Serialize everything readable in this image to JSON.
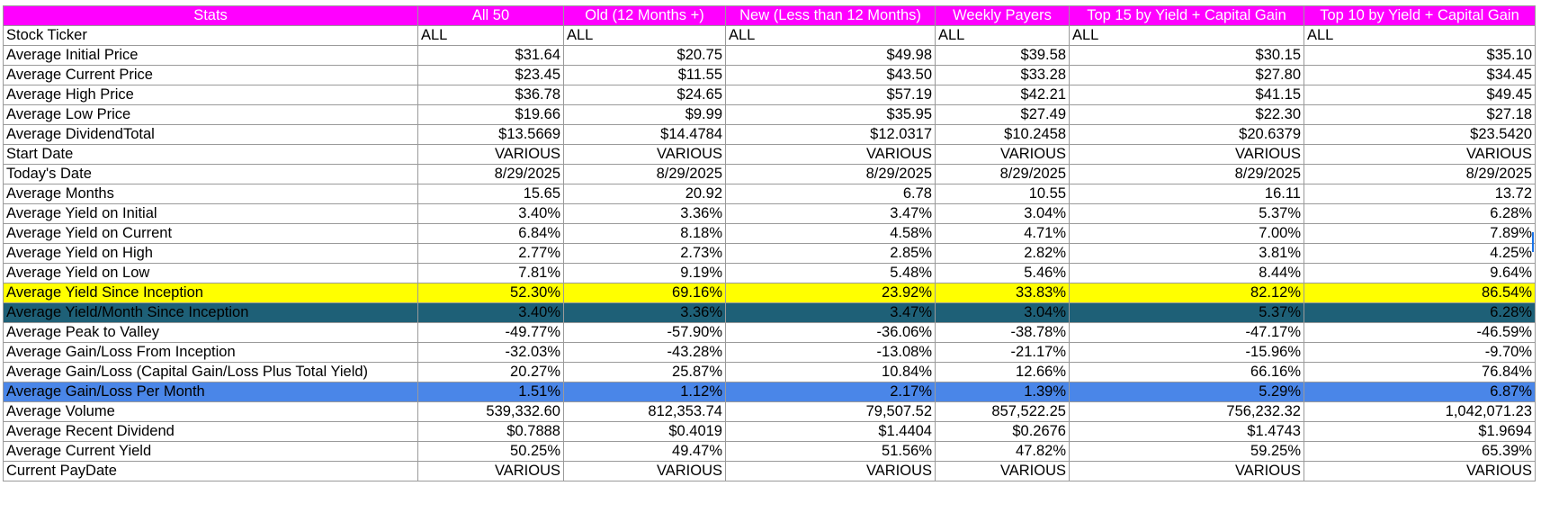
{
  "columns": [
    "Stats",
    "All 50",
    "Old (12 Months +)",
    "New (Less than 12 Months)",
    "Weekly Payers",
    "Top 15 by Yield + Capital Gain",
    "Top 10 by Yield + Capital Gain"
  ],
  "colors": {
    "header_bg": "#ff00ff",
    "header_text": "#ffffff",
    "yellow_highlight": "#ffff00",
    "teal_highlight": "#1e6077",
    "blue_highlight": "#4a86e8",
    "grid": "#9a9a9a"
  },
  "rows": [
    {
      "label": "Stock Ticker",
      "align": "left",
      "style": "",
      "values": [
        "ALL",
        "ALL",
        "ALL",
        "ALL",
        "ALL",
        "ALL"
      ]
    },
    {
      "label": "Average Initial Price",
      "align": "right",
      "style": "",
      "values": [
        "$31.64",
        "$20.75",
        "$49.98",
        "$39.58",
        "$30.15",
        "$35.10"
      ]
    },
    {
      "label": "Average Current Price",
      "align": "right",
      "style": "",
      "values": [
        "$23.45",
        "$11.55",
        "$43.50",
        "$33.28",
        "$27.80",
        "$34.45"
      ]
    },
    {
      "label": "Average High Price",
      "align": "right",
      "style": "",
      "values": [
        "$36.78",
        "$24.65",
        "$57.19",
        "$42.21",
        "$41.15",
        "$49.45"
      ]
    },
    {
      "label": "Average Low Price",
      "align": "right",
      "style": "",
      "values": [
        "$19.66",
        "$9.99",
        "$35.95",
        "$27.49",
        "$22.30",
        "$27.18"
      ]
    },
    {
      "label": "Average DividendTotal",
      "align": "right",
      "style": "",
      "values": [
        "$13.5669",
        "$14.4784",
        "$12.0317",
        "$10.2458",
        "$20.6379",
        "$23.5420"
      ]
    },
    {
      "label": "Start Date",
      "align": "right",
      "style": "",
      "values": [
        "VARIOUS",
        "VARIOUS",
        "VARIOUS",
        "VARIOUS",
        "VARIOUS",
        "VARIOUS"
      ]
    },
    {
      "label": "Today's Date",
      "align": "right",
      "style": "",
      "values": [
        "8/29/2025",
        "8/29/2025",
        "8/29/2025",
        "8/29/2025",
        "8/29/2025",
        "8/29/2025"
      ]
    },
    {
      "label": "Average Months",
      "align": "right",
      "style": "",
      "values": [
        "15.65",
        "20.92",
        "6.78",
        "10.55",
        "16.11",
        "13.72"
      ]
    },
    {
      "label": "Average Yield on Initial",
      "align": "right",
      "style": "",
      "values": [
        "3.40%",
        "3.36%",
        "3.47%",
        "3.04%",
        "5.37%",
        "6.28%"
      ]
    },
    {
      "label": "Average Yield on Current",
      "align": "right",
      "style": "",
      "values": [
        "6.84%",
        "8.18%",
        "4.58%",
        "4.71%",
        "7.00%",
        "7.89%"
      ]
    },
    {
      "label": "Average Yield on High",
      "align": "right",
      "style": "",
      "values": [
        "2.77%",
        "2.73%",
        "2.85%",
        "2.82%",
        "3.81%",
        "4.25%"
      ]
    },
    {
      "label": "Average Yield on Low",
      "align": "right",
      "style": "",
      "values": [
        "7.81%",
        "9.19%",
        "5.48%",
        "5.46%",
        "8.44%",
        "9.64%"
      ]
    },
    {
      "label": "Average Yield Since Inception",
      "align": "right",
      "style": "hl-yellow",
      "values": [
        "52.30%",
        "69.16%",
        "23.92%",
        "33.83%",
        "82.12%",
        "86.54%"
      ]
    },
    {
      "label": "Average Yield/Month Since Inception",
      "align": "right",
      "style": "hl-teal",
      "values": [
        "3.40%",
        "3.36%",
        "3.47%",
        "3.04%",
        "5.37%",
        "6.28%"
      ]
    },
    {
      "label": "Average Peak to Valley",
      "align": "right",
      "style": "",
      "values": [
        "-49.77%",
        "-57.90%",
        "-36.06%",
        "-38.78%",
        "-47.17%",
        "-46.59%"
      ]
    },
    {
      "label": "Average Gain/Loss From Inception",
      "align": "right",
      "style": "",
      "values": [
        "-32.03%",
        "-43.28%",
        "-13.08%",
        "-21.17%",
        "-15.96%",
        "-9.70%"
      ]
    },
    {
      "label": "Average Gain/Loss (Capital Gain/Loss Plus Total Yield)",
      "align": "right",
      "style": "",
      "values": [
        "20.27%",
        "25.87%",
        "10.84%",
        "12.66%",
        "66.16%",
        "76.84%"
      ]
    },
    {
      "label": "Average Gain/Loss Per Month",
      "align": "right",
      "style": "hl-blue",
      "values": [
        "1.51%",
        "1.12%",
        "2.17%",
        "1.39%",
        "5.29%",
        "6.87%"
      ]
    },
    {
      "label": "Average Volume",
      "align": "right",
      "style": "",
      "values": [
        "539,332.60",
        "812,353.74",
        "79,507.52",
        "857,522.25",
        "756,232.32",
        "1,042,071.23"
      ]
    },
    {
      "label": "Average Recent Dividend",
      "align": "right",
      "style": "",
      "values": [
        "$0.7888",
        "$0.4019",
        "$1.4404",
        "$0.2676",
        "$1.4743",
        "$1.9694"
      ]
    },
    {
      "label": "Average Current Yield",
      "align": "right",
      "style": "",
      "values": [
        "50.25%",
        "49.47%",
        "51.56%",
        "47.82%",
        "59.25%",
        "65.39%"
      ]
    },
    {
      "label": "Current PayDate",
      "align": "right",
      "style": "",
      "values": [
        "VARIOUS",
        "VARIOUS",
        "VARIOUS",
        "VARIOUS",
        "VARIOUS",
        "VARIOUS"
      ]
    }
  ]
}
